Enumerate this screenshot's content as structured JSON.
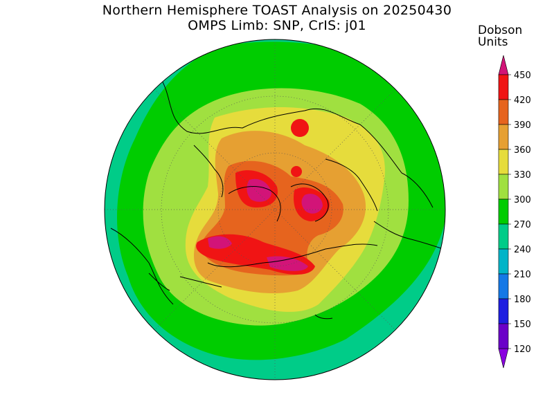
{
  "map": {
    "title_line_1": "Northern Hemisphere TOAST Analysis on 20250430",
    "title_line_2": "OMPS Limb: SNP, CrIS: j01",
    "projection": "north-polar-stereographic",
    "colors": {
      "background": "#ffffff",
      "coastline": "#000000",
      "graticule": "#555555"
    }
  },
  "legend": {
    "title_line_1": "Dobson",
    "title_line_2": "Units",
    "ticks": [
      "120",
      "150",
      "180",
      "210",
      "240",
      "270",
      "300",
      "330",
      "360",
      "390",
      "420",
      "450"
    ],
    "bands": [
      {
        "from": 90,
        "to": 120,
        "color": "#8a00e0"
      },
      {
        "from": 120,
        "to": 150,
        "color": "#6a00c8"
      },
      {
        "from": 150,
        "to": 180,
        "color": "#1e1ee0"
      },
      {
        "from": 180,
        "to": 210,
        "color": "#1478e6"
      },
      {
        "from": 210,
        "to": 240,
        "color": "#00b4c8"
      },
      {
        "from": 240,
        "to": 270,
        "color": "#00cc88"
      },
      {
        "from": 270,
        "to": 300,
        "color": "#00cc00"
      },
      {
        "from": 300,
        "to": 330,
        "color": "#a0e040"
      },
      {
        "from": 330,
        "to": 360,
        "color": "#e6dc3c"
      },
      {
        "from": 360,
        "to": 390,
        "color": "#e6a032"
      },
      {
        "from": 390,
        "to": 420,
        "color": "#e6641e"
      },
      {
        "from": 420,
        "to": 450,
        "color": "#f01414"
      },
      {
        "from": 450,
        "to": 480,
        "color": "#d21478"
      }
    ]
  }
}
